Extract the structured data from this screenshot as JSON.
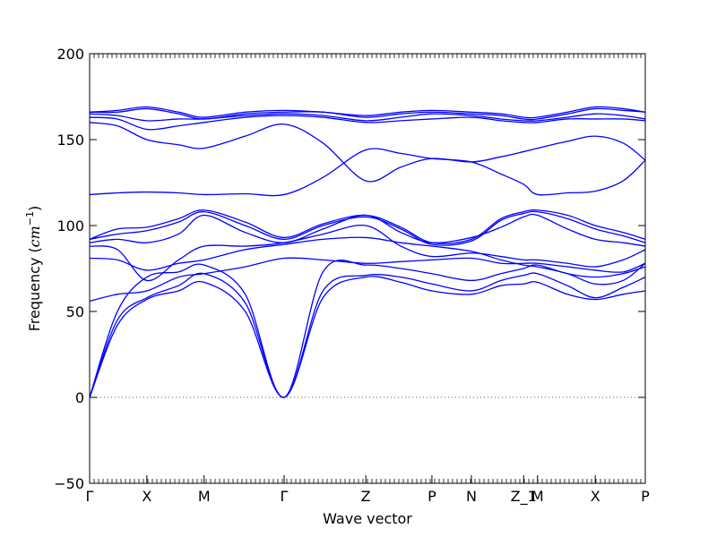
{
  "chart_data": {
    "type": "line",
    "title": "",
    "xlabel": "Wave vector",
    "ylabel": {
      "prefix": "Frequency (",
      "unit": "cm",
      "exponent": "−1",
      "suffix": ")"
    },
    "ylim": [
      -50,
      200
    ],
    "yticks": [
      -50,
      0,
      50,
      100,
      150,
      200
    ],
    "xlim": [
      0,
      1
    ],
    "grid": false,
    "line_color": "#0000ff",
    "zero_line": {
      "y": 0,
      "style": "dotted",
      "color": "#555555"
    },
    "high_symmetry_points": [
      {
        "label": "Γ",
        "x": 0.0
      },
      {
        "label": "X",
        "x": 0.103
      },
      {
        "label": "M",
        "x": 0.206
      },
      {
        "label": "Γ",
        "x": 0.35
      },
      {
        "label": "Z",
        "x": 0.497
      },
      {
        "label": "P",
        "x": 0.616
      },
      {
        "label": "N",
        "x": 0.687
      },
      {
        "label": "Z_1",
        "x": 0.781
      },
      {
        "label": "M",
        "x": 0.806
      },
      {
        "label": "X",
        "x": 0.91
      },
      {
        "label": "P",
        "x": 1.0
      }
    ],
    "series": [
      {
        "x": [
          0,
          0.05,
          0.103,
          0.16,
          0.206,
          0.28,
          0.35,
          0.42,
          0.497,
          0.56,
          0.616,
          0.687,
          0.74,
          0.781,
          0.806,
          0.86,
          0.91,
          0.96,
          1.0
        ],
        "y": [
          0,
          42,
          57,
          62,
          67,
          50,
          0,
          58,
          70,
          67,
          62,
          60,
          65,
          66,
          67,
          60,
          57,
          60,
          62
        ]
      },
      {
        "x": [
          0,
          0.05,
          0.103,
          0.16,
          0.206,
          0.28,
          0.35,
          0.42,
          0.497,
          0.56,
          0.616,
          0.687,
          0.74,
          0.781,
          0.806,
          0.86,
          0.91,
          0.96,
          1.0
        ],
        "y": [
          0,
          45,
          58,
          65,
          72,
          55,
          0,
          62,
          71,
          70,
          66,
          62,
          68,
          71,
          72,
          65,
          58,
          64,
          70
        ]
      },
      {
        "x": [
          0,
          0.05,
          0.103,
          0.16,
          0.206,
          0.28,
          0.35,
          0.42,
          0.497,
          0.56,
          0.616,
          0.687,
          0.74,
          0.781,
          0.806,
          0.86,
          0.91,
          0.96,
          1.0
        ],
        "y": [
          0,
          50,
          70,
          73,
          77,
          60,
          0,
          73,
          77,
          75,
          72,
          68,
          72,
          75,
          77,
          72,
          70,
          72,
          76
        ]
      },
      {
        "x": [
          0,
          0.05,
          0.103,
          0.16,
          0.206,
          0.28,
          0.35,
          0.42,
          0.497,
          0.56,
          0.616,
          0.687,
          0.74,
          0.781,
          0.806,
          0.86,
          0.91,
          0.96,
          1.0
        ],
        "y": [
          56,
          60,
          62,
          70,
          72,
          76,
          81,
          80,
          78,
          79,
          80,
          81,
          78,
          78,
          78,
          76,
          74,
          73,
          78
        ]
      },
      {
        "x": [
          0,
          0.05,
          0.103,
          0.16,
          0.206,
          0.28,
          0.35,
          0.42,
          0.497,
          0.56,
          0.616,
          0.687,
          0.74,
          0.781,
          0.806,
          0.86,
          0.91,
          0.96,
          1.0
        ],
        "y": [
          81,
          80,
          74,
          78,
          80,
          86,
          89,
          92,
          93,
          90,
          88,
          85,
          80,
          77,
          76,
          72,
          66,
          68,
          78
        ]
      },
      {
        "x": [
          0,
          0.05,
          0.103,
          0.16,
          0.206,
          0.28,
          0.35,
          0.42,
          0.497,
          0.56,
          0.616,
          0.687,
          0.74,
          0.781,
          0.806,
          0.86,
          0.91,
          0.96,
          1.0
        ],
        "y": [
          88,
          86,
          68,
          80,
          88,
          88,
          90,
          95,
          100,
          88,
          82,
          84,
          82,
          80,
          80,
          78,
          76,
          80,
          86
        ]
      },
      {
        "x": [
          0,
          0.05,
          0.103,
          0.16,
          0.206,
          0.28,
          0.35,
          0.42,
          0.497,
          0.56,
          0.616,
          0.687,
          0.74,
          0.781,
          0.806,
          0.86,
          0.91,
          0.96,
          1.0
        ],
        "y": [
          90,
          92,
          90,
          95,
          106,
          96,
          90,
          98,
          106,
          96,
          90,
          93,
          99,
          105,
          106,
          98,
          92,
          90,
          88
        ]
      },
      {
        "x": [
          0,
          0.05,
          0.103,
          0.16,
          0.206,
          0.28,
          0.35,
          0.42,
          0.497,
          0.56,
          0.616,
          0.687,
          0.74,
          0.781,
          0.806,
          0.86,
          0.91,
          0.96,
          1.0
        ],
        "y": [
          92,
          95,
          97,
          102,
          108,
          100,
          92,
          100,
          105,
          98,
          89,
          91,
          103,
          107,
          108,
          104,
          98,
          94,
          90
        ]
      },
      {
        "x": [
          0,
          0.05,
          0.103,
          0.16,
          0.206,
          0.28,
          0.35,
          0.42,
          0.497,
          0.56,
          0.616,
          0.687,
          0.74,
          0.781,
          0.806,
          0.86,
          0.91,
          0.96,
          1.0
        ],
        "y": [
          92,
          98,
          99,
          104,
          109,
          102,
          93,
          101,
          106,
          99,
          90,
          92,
          104,
          108,
          109,
          106,
          100,
          96,
          92
        ]
      },
      {
        "x": [
          0,
          0.05,
          0.103,
          0.16,
          0.206,
          0.28,
          0.35,
          0.42,
          0.497,
          0.56,
          0.616,
          0.687,
          0.74,
          0.781,
          0.806,
          0.86,
          0.91,
          0.96,
          1.0
        ],
        "y": [
          118,
          119,
          119.5,
          119,
          118,
          118.5,
          118,
          128,
          144,
          142,
          139,
          137,
          130,
          124,
          118,
          119,
          120,
          126,
          138
        ]
      },
      {
        "x": [
          0,
          0.05,
          0.103,
          0.16,
          0.206,
          0.28,
          0.35,
          0.42,
          0.497,
          0.56,
          0.616,
          0.687,
          0.74,
          0.781,
          0.806,
          0.86,
          0.91,
          0.96,
          1.0
        ],
        "y": [
          160,
          158,
          150,
          147,
          145,
          152,
          159,
          148,
          126,
          134,
          139,
          137,
          140,
          143,
          145,
          149,
          152,
          148,
          138
        ]
      },
      {
        "x": [
          0,
          0.05,
          0.103,
          0.16,
          0.206,
          0.28,
          0.35,
          0.42,
          0.497,
          0.56,
          0.616,
          0.687,
          0.74,
          0.781,
          0.806,
          0.86,
          0.91,
          0.96,
          1.0
        ],
        "y": [
          163,
          162,
          156,
          158,
          160,
          163,
          164,
          163,
          160,
          161,
          162,
          163,
          161,
          160,
          160,
          162,
          162,
          162,
          161
        ]
      },
      {
        "x": [
          0,
          0.05,
          0.103,
          0.16,
          0.206,
          0.28,
          0.35,
          0.42,
          0.497,
          0.56,
          0.616,
          0.687,
          0.74,
          0.781,
          0.806,
          0.86,
          0.91,
          0.96,
          1.0
        ],
        "y": [
          165,
          164,
          161,
          162,
          162,
          164,
          165,
          164,
          161,
          163,
          165,
          164,
          162,
          161,
          161,
          163,
          165,
          164,
          162
        ]
      },
      {
        "x": [
          0,
          0.05,
          0.103,
          0.16,
          0.206,
          0.28,
          0.35,
          0.42,
          0.497,
          0.56,
          0.616,
          0.687,
          0.74,
          0.781,
          0.806,
          0.86,
          0.91,
          0.96,
          1.0
        ],
        "y": [
          166,
          166,
          168,
          165,
          162,
          165,
          166,
          166,
          163,
          165,
          166,
          165,
          164,
          162,
          162,
          165,
          168,
          167,
          166
        ]
      },
      {
        "x": [
          0,
          0.05,
          0.103,
          0.16,
          0.206,
          0.28,
          0.35,
          0.42,
          0.497,
          0.56,
          0.616,
          0.687,
          0.74,
          0.781,
          0.806,
          0.86,
          0.91,
          0.96,
          1.0
        ],
        "y": [
          166,
          167,
          169,
          166,
          163,
          166,
          167,
          166,
          164,
          166,
          167,
          166,
          165,
          163,
          163,
          166,
          169,
          168,
          166
        ]
      }
    ]
  }
}
